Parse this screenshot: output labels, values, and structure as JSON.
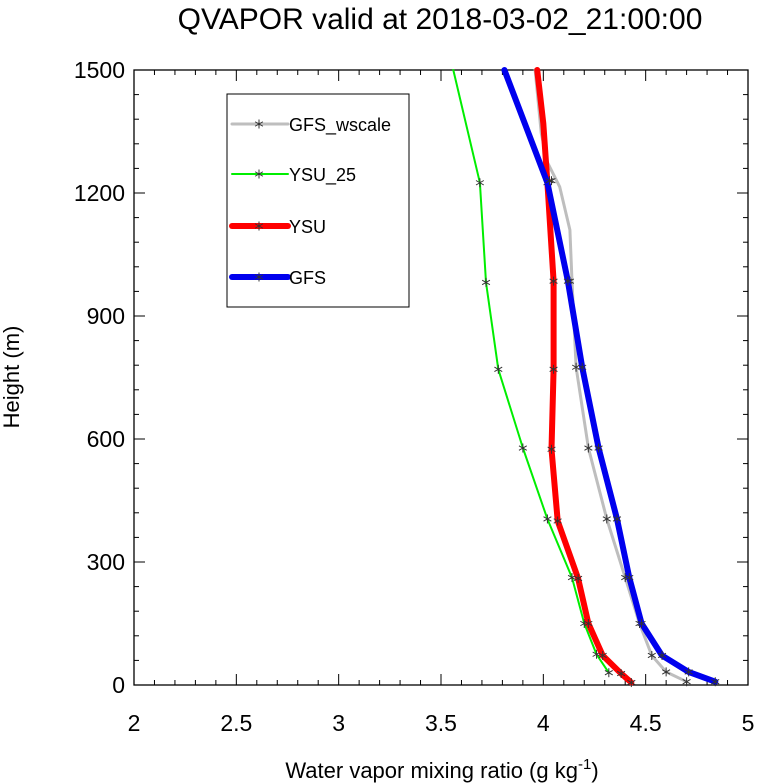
{
  "chart_data": {
    "type": "line",
    "title": "QVAPOR valid at 2018-03-02_21:00:00",
    "xlabel": "Water vapor mixing ratio (g kg",
    "xlabel_sup": "-1",
    "xlabel_tail": ")",
    "ylabel": "Height (m)",
    "xlim": [
      2,
      5
    ],
    "ylim": [
      0,
      1500
    ],
    "xticks": [
      "2",
      "2.5",
      "3",
      "3.5",
      "4",
      "4.5",
      "5"
    ],
    "yticks": [
      "0",
      "300",
      "600",
      "900",
      "1200",
      "1500"
    ],
    "grid": false,
    "legend_position": "top-left",
    "series": [
      {
        "name": "GFS_wscale",
        "color": "#bebebe",
        "width": 3,
        "x": [
          4.7,
          4.6,
          4.53,
          4.47,
          4.4,
          4.31,
          4.22,
          4.16,
          4.14,
          4.13,
          4.08,
          4.02,
          3.99,
          3.96
        ],
        "y": [
          8,
          32,
          72,
          150,
          262,
          405,
          578,
          775,
          985,
          1110,
          1215,
          1275,
          1345,
          1500
        ],
        "markers": [
          [
            4.7,
            8
          ],
          [
            4.6,
            32
          ],
          [
            4.53,
            72
          ],
          [
            4.47,
            150
          ],
          [
            4.4,
            262
          ],
          [
            4.31,
            405
          ],
          [
            4.22,
            578
          ],
          [
            4.16,
            775
          ],
          [
            4.13,
            985
          ],
          [
            4.04,
            1230
          ]
        ]
      },
      {
        "name": "YSU_25",
        "color": "#00ee00",
        "width": 2,
        "x": [
          4.32,
          4.26,
          4.2,
          4.14,
          4.02,
          3.9,
          3.78,
          3.72,
          3.69,
          3.56
        ],
        "y": [
          30,
          75,
          150,
          262,
          405,
          578,
          770,
          982,
          1225,
          1500
        ],
        "markers": [
          [
            4.32,
            30
          ],
          [
            4.26,
            75
          ],
          [
            4.2,
            150
          ],
          [
            4.14,
            262
          ],
          [
            4.02,
            405
          ],
          [
            3.9,
            578
          ],
          [
            3.78,
            770
          ],
          [
            3.72,
            982
          ],
          [
            3.69,
            1225
          ]
        ]
      },
      {
        "name": "YSU",
        "color": "#ff0000",
        "width": 6,
        "x": [
          4.43,
          4.38,
          4.29,
          4.22,
          4.17,
          4.07,
          4.04,
          4.05,
          4.05,
          4.02,
          4.0,
          3.97
        ],
        "y": [
          6,
          28,
          72,
          150,
          260,
          400,
          575,
          770,
          985,
          1225,
          1370,
          1500
        ],
        "markers": [
          [
            4.43,
            6
          ],
          [
            4.38,
            28
          ],
          [
            4.29,
            72
          ],
          [
            4.22,
            150
          ],
          [
            4.17,
            260
          ],
          [
            4.07,
            400
          ],
          [
            4.04,
            575
          ],
          [
            4.05,
            770
          ],
          [
            4.05,
            985
          ],
          [
            4.02,
            1225
          ]
        ]
      },
      {
        "name": "GFS",
        "color": "#0000ee",
        "width": 6,
        "x": [
          4.84,
          4.71,
          4.58,
          4.48,
          4.42,
          4.36,
          4.27,
          4.19,
          4.12,
          4.02,
          3.81
        ],
        "y": [
          8,
          32,
          72,
          150,
          262,
          405,
          578,
          775,
          985,
          1225,
          1500
        ],
        "markers": [
          [
            4.84,
            8
          ],
          [
            4.71,
            32
          ],
          [
            4.58,
            72
          ],
          [
            4.48,
            150
          ],
          [
            4.42,
            262
          ],
          [
            4.36,
            405
          ],
          [
            4.27,
            578
          ],
          [
            4.19,
            775
          ],
          [
            4.12,
            985
          ],
          [
            4.03,
            1230
          ]
        ]
      }
    ]
  }
}
